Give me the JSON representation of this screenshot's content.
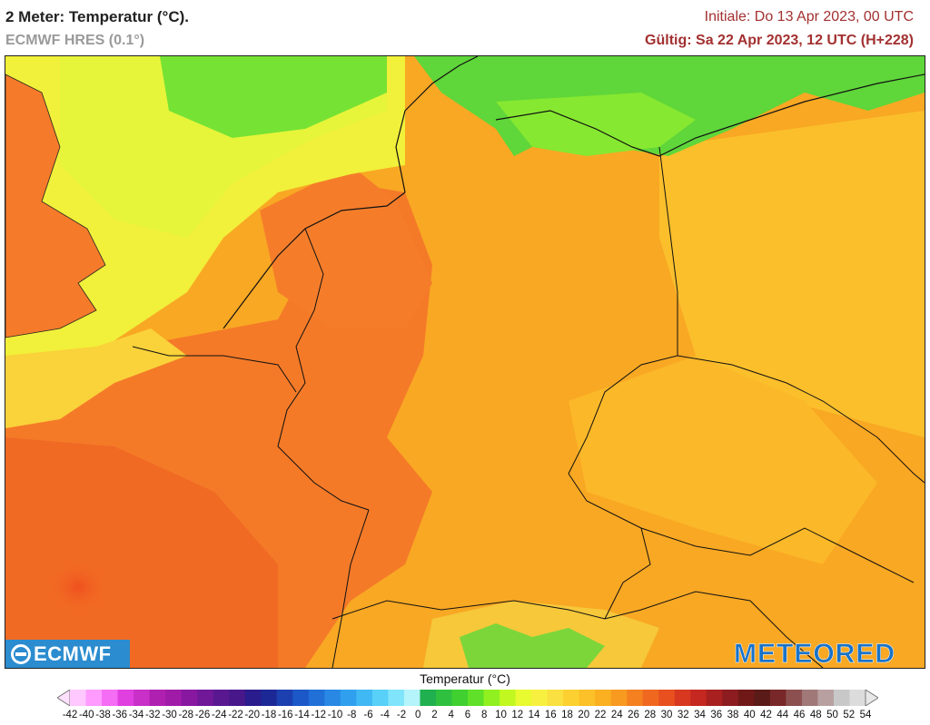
{
  "header": {
    "title": "2 Meter: Temperatur (°C).",
    "model": "ECMWF HRES (0.1°)",
    "init": "Initiale: Do 13 Apr 2023, 00 UTC",
    "valid": "Gültig: Sa 22 Apr 2023, 12 UTC (H+228)"
  },
  "logos": {
    "left": "ECMWF",
    "right": "METEORED"
  },
  "legend": {
    "title": "Temperatur (°C)",
    "ticks": [
      "-42",
      "-40",
      "-38",
      "-36",
      "-34",
      "-32",
      "-30",
      "-28",
      "-26",
      "-24",
      "-22",
      "-20",
      "-18",
      "-16",
      "-14",
      "-12",
      "-10",
      "-8",
      "-6",
      "-4",
      "-2",
      "0",
      "2",
      "4",
      "6",
      "8",
      "10",
      "12",
      "14",
      "16",
      "18",
      "20",
      "22",
      "24",
      "26",
      "28",
      "30",
      "32",
      "34",
      "36",
      "38",
      "40",
      "42",
      "44",
      "46",
      "48",
      "50",
      "52",
      "54"
    ],
    "colors": [
      "#ffc8ff",
      "#ff9bff",
      "#f56cf5",
      "#e040e0",
      "#c830c8",
      "#b020b0",
      "#a01ca8",
      "#8818a0",
      "#701898",
      "#5a1890",
      "#48188a",
      "#2a1c8c",
      "#1c2896",
      "#1c40b0",
      "#1c58c8",
      "#2070d8",
      "#2888e4",
      "#30a0ee",
      "#40b8f4",
      "#58d0f8",
      "#80e4fa",
      "#b4f4fa",
      "#20b050",
      "#30c040",
      "#40d030",
      "#60e028",
      "#90f020",
      "#c0f820",
      "#e8fa30",
      "#f8f040",
      "#fae040",
      "#fcd030",
      "#fcc028",
      "#fab020",
      "#f89a20",
      "#f48020",
      "#f06820",
      "#e85020",
      "#d83820",
      "#c42820",
      "#a82020",
      "#8c1c20",
      "#701818",
      "#5a1a18",
      "#782828",
      "#8c5050",
      "#a07878",
      "#b8a0a0",
      "#c8c8c8",
      "#dcdcdc"
    ]
  }
}
